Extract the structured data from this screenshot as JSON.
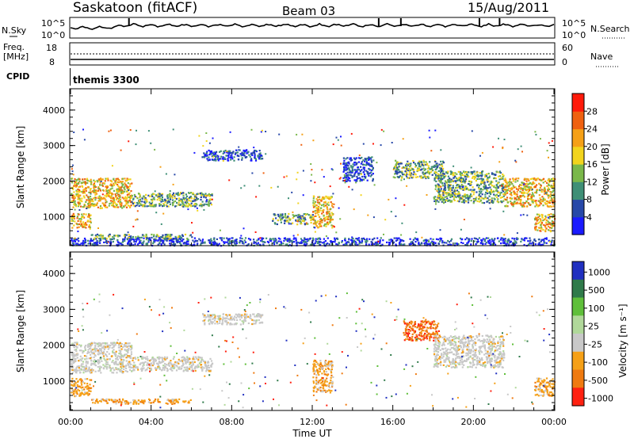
{
  "header": {
    "station": "Saskatoon (fitACF)",
    "beam": "Beam 03",
    "date": "15/Aug/2011"
  },
  "top_panel": {
    "left_label": "N.Sky",
    "left_ticks": [
      "10^5",
      "10^0"
    ],
    "right_ticks": [
      "10^5",
      "10^0"
    ],
    "right_label": "N.Search"
  },
  "freq_panel": {
    "left_label_1": "Freq.",
    "left_label_2": "[MHz]",
    "left_ticks": [
      "18",
      "8"
    ],
    "right_ticks": [
      "60",
      "0"
    ],
    "right_label": "Nave"
  },
  "cpid": {
    "label": "CPID",
    "value": "themis 3300"
  },
  "chart_data": [
    {
      "type": "heatmap",
      "title": "",
      "ylabel": "Slant Range [km]",
      "xlim_hours": [
        0,
        24
      ],
      "ylim_km": [
        180,
        4600
      ],
      "y_ticks": [
        "1000",
        "2000",
        "3000",
        "4000"
      ],
      "colorbar": {
        "label": "Power [dB]",
        "ticks": [
          "4",
          "8",
          "12",
          "16",
          "20",
          "24",
          "28"
        ],
        "colors": [
          "#1a1aff",
          "#2748a8",
          "#3f8f76",
          "#7ab84a",
          "#f2d41d",
          "#f5a017",
          "#ef6110",
          "#ff1a0a"
        ]
      },
      "features": [
        {
          "t0": 0.0,
          "t1": 3.0,
          "r_top": 2100,
          "r_bot": 1250,
          "intensity": "high"
        },
        {
          "t0": 0.0,
          "t1": 1.0,
          "r_top": 1100,
          "r_bot": 700,
          "intensity": "high"
        },
        {
          "t0": 1.0,
          "t1": 6.0,
          "r_top": 520,
          "r_bot": 380,
          "intensity": "medium"
        },
        {
          "t0": 3.0,
          "t1": 7.0,
          "r_top": 1700,
          "r_bot": 1300,
          "intensity": "medium"
        },
        {
          "t0": 6.5,
          "t1": 9.5,
          "r_top": 2900,
          "r_bot": 2600,
          "intensity": "low"
        },
        {
          "t0": 10.0,
          "t1": 12.0,
          "r_top": 1100,
          "r_bot": 800,
          "intensity": "medium"
        },
        {
          "t0": 12.0,
          "t1": 13.0,
          "r_top": 1600,
          "r_bot": 700,
          "intensity": "high"
        },
        {
          "t0": 13.5,
          "t1": 15.0,
          "r_top": 2700,
          "r_bot": 2000,
          "intensity": "low"
        },
        {
          "t0": 16.0,
          "t1": 18.5,
          "r_top": 2600,
          "r_bot": 2100,
          "intensity": "medium"
        },
        {
          "t0": 18.0,
          "t1": 21.5,
          "r_top": 2300,
          "r_bot": 1400,
          "intensity": "medium"
        },
        {
          "t0": 21.5,
          "t1": 24.0,
          "r_top": 2100,
          "r_bot": 1300,
          "intensity": "high"
        },
        {
          "t0": 23.0,
          "t1": 24.0,
          "r_top": 1100,
          "r_bot": 600,
          "intensity": "high"
        },
        {
          "t0": 0.0,
          "t1": 24.0,
          "r_top": 420,
          "r_bot": 200,
          "intensity": "low"
        }
      ]
    },
    {
      "type": "heatmap",
      "title": "",
      "xlabel": "Time UT",
      "ylabel": "Slant Range [km]",
      "xlim_hours": [
        0,
        24
      ],
      "ylim_km": [
        180,
        4600
      ],
      "x_ticks": [
        "00:00",
        "04:00",
        "08:00",
        "12:00",
        "16:00",
        "20:00",
        "00:00"
      ],
      "y_ticks": [
        "1000",
        "2000",
        "3000",
        "4000"
      ],
      "colorbar": {
        "label": "Velocity [m s⁻¹]",
        "ticks": [
          "1000",
          "500",
          "100",
          "25",
          "-25",
          "-100",
          "-500",
          "-1000"
        ],
        "colors": [
          "#2030c0",
          "#2f7a4a",
          "#5fbf3a",
          "#b0d89a",
          "#c8c8c8",
          "#f5a017",
          "#ef7a10",
          "#ff2010"
        ]
      },
      "features": [
        {
          "t0": 0.0,
          "t1": 3.0,
          "r_top": 2100,
          "r_bot": 1250,
          "velocity": "~0"
        },
        {
          "t0": 0.0,
          "t1": 1.0,
          "r_top": 1100,
          "r_bot": 600,
          "velocity": "-100"
        },
        {
          "t0": 1.0,
          "t1": 6.0,
          "r_top": 520,
          "r_bot": 380,
          "velocity": "-100"
        },
        {
          "t0": 3.0,
          "t1": 7.0,
          "r_top": 1700,
          "r_bot": 1300,
          "velocity": "~0"
        },
        {
          "t0": 6.5,
          "t1": 9.5,
          "r_top": 2900,
          "r_bot": 2600,
          "velocity": "~0"
        },
        {
          "t0": 12.0,
          "t1": 13.0,
          "r_top": 1600,
          "r_bot": 700,
          "velocity": "-100"
        },
        {
          "t0": 16.5,
          "t1": 18.3,
          "r_top": 2700,
          "r_bot": 2150,
          "velocity": "-500"
        },
        {
          "t0": 18.0,
          "t1": 21.5,
          "r_top": 2300,
          "r_bot": 1400,
          "velocity": "~0"
        },
        {
          "t0": 23.0,
          "t1": 24.0,
          "r_top": 1100,
          "r_bot": 600,
          "velocity": "-100"
        }
      ]
    }
  ]
}
